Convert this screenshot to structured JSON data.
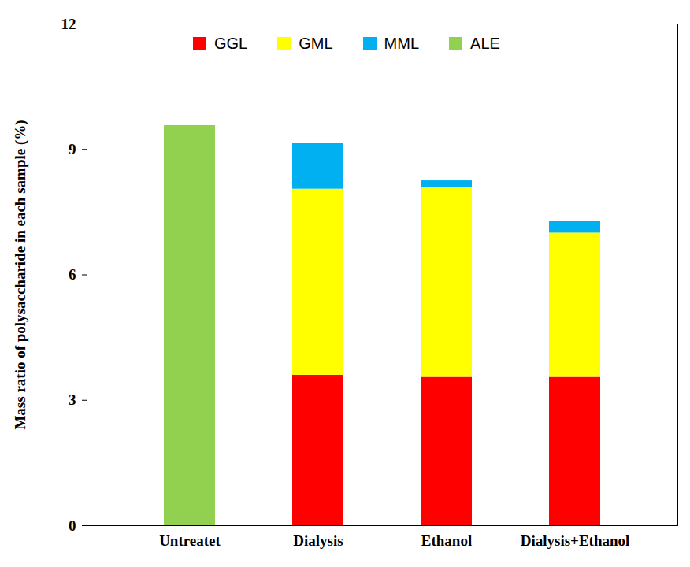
{
  "chart_data": {
    "type": "bar",
    "stacked": true,
    "categories": [
      "Untreatet",
      "Dialysis",
      "Ethanol",
      "Dialysis+Ethanol"
    ],
    "series": [
      {
        "name": "GGL",
        "color": "#ff0000",
        "values": [
          null,
          3.6,
          3.55,
          3.55
        ]
      },
      {
        "name": "GML",
        "color": "#ffff00",
        "values": [
          null,
          4.45,
          4.53,
          3.45
        ]
      },
      {
        "name": "MML",
        "color": "#00b0f0",
        "values": [
          null,
          1.1,
          0.17,
          0.28
        ]
      },
      {
        "name": "ALE",
        "color": "#92d050",
        "values": [
          9.57,
          null,
          null,
          null
        ]
      }
    ],
    "y_label": "Mass ratio of polysaccharide in each sample (%)",
    "ylim": [
      0,
      12
    ],
    "yticks": [
      0,
      3,
      6,
      9,
      12
    ],
    "grid": false,
    "legend": "top"
  }
}
